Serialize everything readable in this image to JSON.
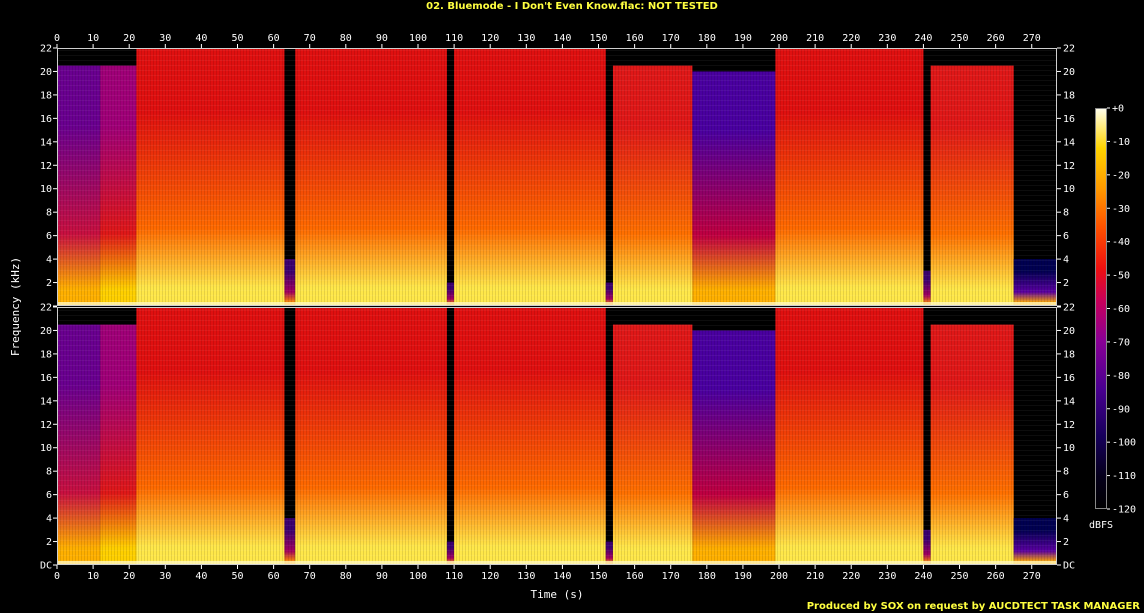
{
  "chart_data": {
    "type": "heatmap",
    "title": "02. Bluemode - I Don't Even Know.flac: NOT TESTED",
    "xlabel": "Time (s)",
    "ylabel": "Frequency (kHz)",
    "x_ticks": [
      "0",
      "10",
      "20",
      "30",
      "40",
      "50",
      "60",
      "70",
      "80",
      "90",
      "100",
      "110",
      "120",
      "130",
      "140",
      "150",
      "160",
      "170",
      "180",
      "190",
      "200",
      "210",
      "220",
      "230",
      "240",
      "250",
      "260",
      "270"
    ],
    "y_ticks": [
      "DC",
      "2",
      "4",
      "6",
      "8",
      "10",
      "12",
      "14",
      "16",
      "18",
      "20",
      "22"
    ],
    "xlim": [
      0,
      277
    ],
    "ylim_khz": [
      0,
      22
    ],
    "channels": 2,
    "colorbar": {
      "label": "dBFS",
      "ticks": [
        "+0",
        "-10",
        "-20",
        "-30",
        "-40",
        "-50",
        "-60",
        "-70",
        "-80",
        "-90",
        "-100",
        "-110",
        "-120"
      ],
      "range_db": [
        -120,
        0
      ]
    },
    "segments": [
      {
        "start": 0,
        "end": 12,
        "level": "soft intro",
        "cutoff_khz": 20.5
      },
      {
        "start": 12,
        "end": 22,
        "level": "build-up",
        "cutoff_khz": 20.5
      },
      {
        "start": 22,
        "end": 63,
        "level": "loud full-band",
        "cutoff_khz": 22
      },
      {
        "start": 63,
        "end": 66,
        "level": "gap",
        "cutoff_khz": 4
      },
      {
        "start": 66,
        "end": 108,
        "level": "loud full-band",
        "cutoff_khz": 22
      },
      {
        "start": 108,
        "end": 110,
        "level": "gap",
        "cutoff_khz": 2
      },
      {
        "start": 110,
        "end": 152,
        "level": "loud full-band",
        "cutoff_khz": 22
      },
      {
        "start": 152,
        "end": 154,
        "level": "gap",
        "cutoff_khz": 2
      },
      {
        "start": 154,
        "end": 176,
        "level": "loud",
        "cutoff_khz": 20.5
      },
      {
        "start": 176,
        "end": 199,
        "level": "quiet breakdown",
        "cutoff_khz": 20
      },
      {
        "start": 199,
        "end": 240,
        "level": "loud full-band",
        "cutoff_khz": 22
      },
      {
        "start": 240,
        "end": 242,
        "level": "gap",
        "cutoff_khz": 3
      },
      {
        "start": 242,
        "end": 265,
        "level": "loud",
        "cutoff_khz": 20.5
      },
      {
        "start": 265,
        "end": 277,
        "level": "fade-out",
        "cutoff_khz": 4
      }
    ]
  },
  "credit": "Produced by SOX on request by AUCDTECT TASK MANAGER"
}
